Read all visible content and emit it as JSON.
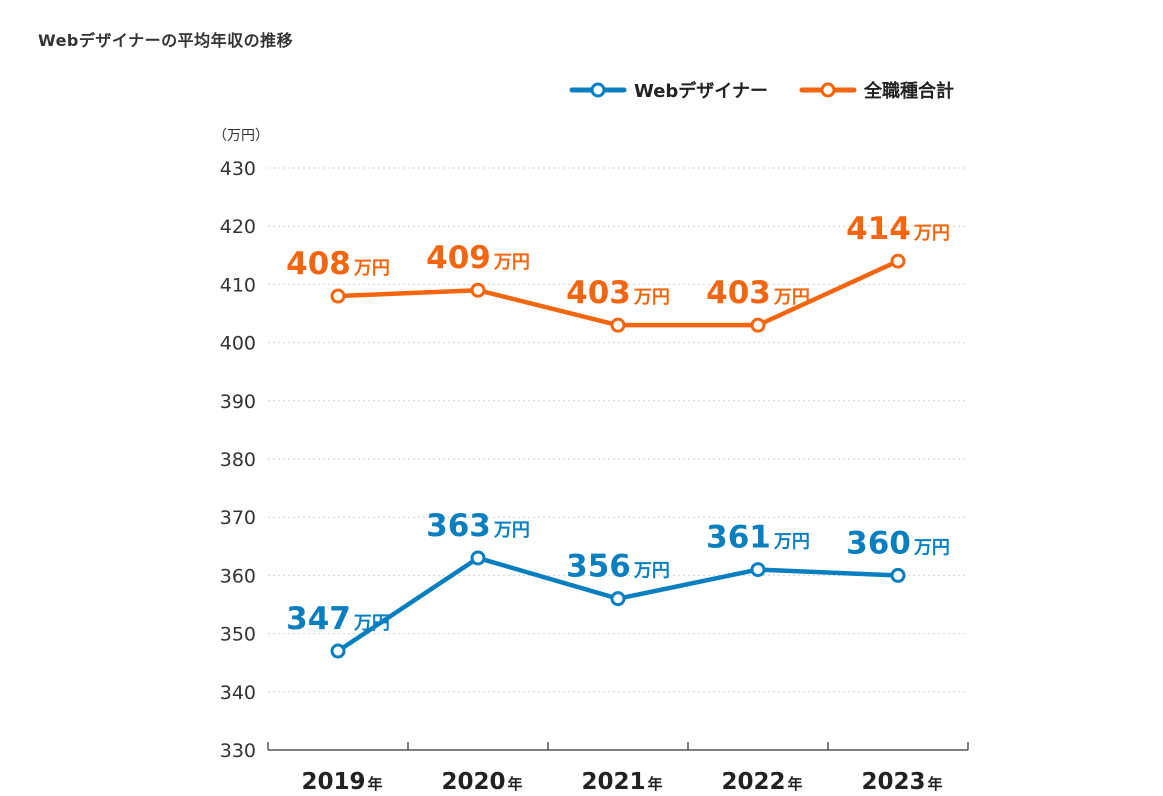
{
  "chart_data": {
    "type": "line",
    "title": "Webデザイナーの平均年収の推移",
    "y_unit_label": "（万円）",
    "categories": [
      "2019",
      "2020",
      "2021",
      "2022",
      "2023"
    ],
    "category_suffix": "年",
    "data_label_unit": "万円",
    "ylim": [
      330,
      430
    ],
    "yticks": [
      "430",
      "420",
      "410",
      "400",
      "390",
      "380",
      "370",
      "360",
      "350",
      "340",
      "330"
    ],
    "grid": true,
    "legend_position": "top-right",
    "series": [
      {
        "name": "Webデザイナー",
        "color": "#0a7fc0",
        "values": [
          347,
          363,
          356,
          361,
          360
        ],
        "labels": [
          "347",
          "363",
          "356",
          "361",
          "360"
        ]
      },
      {
        "name": "全職種合計",
        "color": "#f3650e",
        "values": [
          408,
          409,
          403,
          403,
          414
        ],
        "labels": [
          "408",
          "409",
          "403",
          "403",
          "414"
        ]
      }
    ]
  }
}
